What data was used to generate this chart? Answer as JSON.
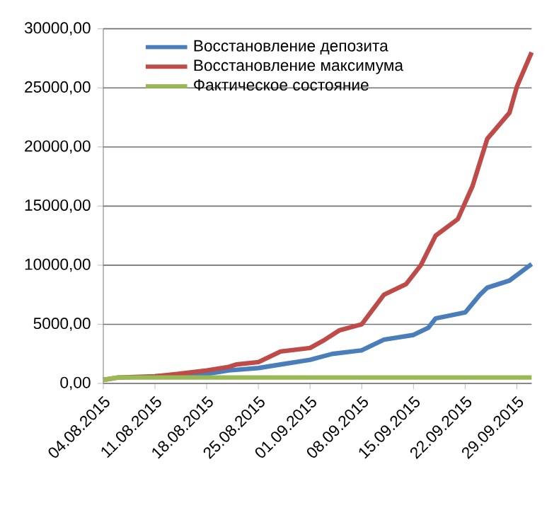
{
  "chart_data": {
    "type": "line",
    "legend": "top left",
    "grid": "y",
    "line_style": "solid",
    "marker": "none",
    "xlim": [
      "2015-08-04",
      "2015-10-01"
    ],
    "ylim": [
      0,
      30000
    ],
    "xticks": [
      {
        "value": "2015-08-04",
        "label": "04.08.2015"
      },
      {
        "value": "2015-08-11",
        "label": "11.08.2015"
      },
      {
        "value": "2015-08-18",
        "label": "18.08.2015"
      },
      {
        "value": "2015-08-25",
        "label": "25.08.2015"
      },
      {
        "value": "2015-09-01",
        "label": "01.09.2015"
      },
      {
        "value": "2015-09-08",
        "label": "08.09.2015"
      },
      {
        "value": "2015-09-15",
        "label": "15.09.2015"
      },
      {
        "value": "2015-09-22",
        "label": "22.09.2015"
      },
      {
        "value": "2015-09-29",
        "label": "29.09.2015"
      }
    ],
    "yticks": [
      {
        "value": 0,
        "label": "0,00"
      },
      {
        "value": 5000,
        "label": "5000,00"
      },
      {
        "value": 10000,
        "label": "10000,00"
      },
      {
        "value": 15000,
        "label": "15000,00"
      },
      {
        "value": 20000,
        "label": "20000,00"
      },
      {
        "value": 25000,
        "label": "25000,00"
      },
      {
        "value": 30000,
        "label": "30000,00"
      }
    ],
    "series": [
      {
        "name": "Восстановление депозита",
        "color": "#4a7ebb",
        "x": [
          "2015-08-11",
          "2015-08-18",
          "2015-08-21",
          "2015-08-25",
          "2015-08-28",
          "2015-09-01",
          "2015-09-04",
          "2015-09-08",
          "2015-09-11",
          "2015-09-15",
          "2015-09-17",
          "2015-09-18",
          "2015-09-22",
          "2015-09-24",
          "2015-09-25",
          "2015-09-28",
          "2015-10-01"
        ],
        "values": [
          600,
          800,
          1100,
          1300,
          1600,
          2000,
          2500,
          2800,
          3700,
          4100,
          4700,
          5500,
          6000,
          7500,
          8100,
          8700,
          10100
        ]
      },
      {
        "name": "Восстановление максимума",
        "color": "#be4b48",
        "x": [
          "2015-08-04",
          "2015-08-06",
          "2015-08-11",
          "2015-08-14",
          "2015-08-18",
          "2015-08-21",
          "2015-08-22",
          "2015-08-25",
          "2015-08-28",
          "2015-09-01",
          "2015-09-03",
          "2015-09-05",
          "2015-09-08",
          "2015-09-11",
          "2015-09-14",
          "2015-09-16",
          "2015-09-18",
          "2015-09-21",
          "2015-09-23",
          "2015-09-25",
          "2015-09-28",
          "2015-09-29",
          "2015-10-01"
        ],
        "values": [
          300,
          500,
          600,
          800,
          1100,
          1400,
          1600,
          1800,
          2700,
          3000,
          3700,
          4500,
          5000,
          7500,
          8400,
          10000,
          12500,
          13900,
          16700,
          20700,
          22900,
          25100,
          28000
        ]
      },
      {
        "name": "Фактическое состояние",
        "color": "#98b954",
        "x": [
          "2015-08-04",
          "2015-08-06",
          "2015-10-01"
        ],
        "values": [
          300,
          500,
          500
        ]
      }
    ]
  }
}
